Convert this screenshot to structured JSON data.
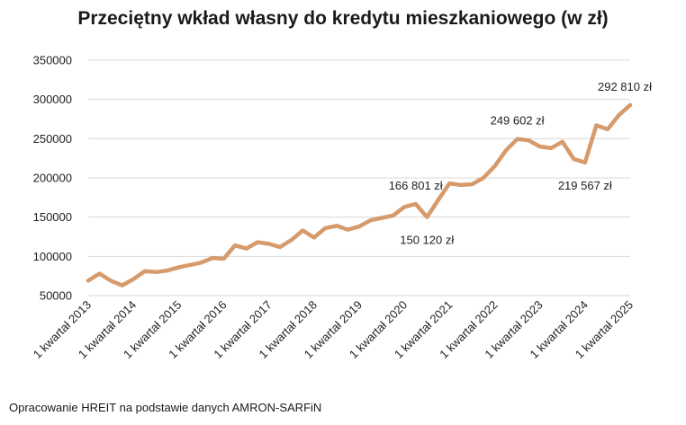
{
  "chart_data": {
    "type": "line",
    "title": "Przeciętny wkład własny do kredytu mieszkaniowego (w zł)",
    "xlabel": "",
    "ylabel": "",
    "ylim": [
      50000,
      350000
    ],
    "y_ticks": [
      "50000",
      "100000",
      "150000",
      "200000",
      "250000",
      "300000",
      "350000"
    ],
    "grid": true,
    "legend": "none",
    "line_color": "#D69A6B",
    "gridline_color": "#D9D9D9",
    "categories": [
      "1 kwartał 2013",
      "2 kwartał 2013",
      "3 kwartał 2013",
      "4 kwartał 2013",
      "1 kwartał 2014",
      "2 kwartał 2014",
      "3 kwartał 2014",
      "4 kwartał 2014",
      "1 kwartał 2015",
      "2 kwartał 2015",
      "3 kwartał 2015",
      "4 kwartał 2015",
      "1 kwartał 2016",
      "2 kwartał 2016",
      "3 kwartał 2016",
      "4 kwartał 2016",
      "1 kwartał 2017",
      "2 kwartał 2017",
      "3 kwartał 2017",
      "4 kwartał 2017",
      "1 kwartał 2018",
      "2 kwartał 2018",
      "3 kwartał 2018",
      "4 kwartał 2018",
      "1 kwartał 2019",
      "2 kwartał 2019",
      "3 kwartał 2019",
      "4 kwartał 2019",
      "1 kwartał 2020",
      "2 kwartał 2020",
      "3 kwartał 2020",
      "4 kwartał 2020",
      "1 kwartał 2021",
      "2 kwartał 2021",
      "3 kwartał 2021",
      "4 kwartał 2021",
      "1 kwartał 2022",
      "2 kwartał 2022",
      "3 kwartał 2022",
      "4 kwartał 2022",
      "1 kwartał 2023",
      "2 kwartał 2023",
      "3 kwartał 2023",
      "4 kwartał 2023",
      "1 kwartał 2024",
      "2 kwartał 2024",
      "3 kwartał 2024",
      "4 kwartał 2024",
      "1 kwartał 2025"
    ],
    "x_tick_labels": [
      "1 kwartał 2013",
      "1 kwartał 2014",
      "1 kwartał 2015",
      "1 kwartał 2016",
      "1 kwartał 2017",
      "1 kwartał 2018",
      "1 kwartał 2019",
      "1 kwartał 2020",
      "1 kwartał 2021",
      "1 kwartał 2022",
      "1 kwartał 2023",
      "1 kwartał 2024",
      "1 kwartał 2025"
    ],
    "values": [
      69000,
      78000,
      69000,
      63000,
      71000,
      81000,
      80000,
      82000,
      86000,
      89000,
      92000,
      98000,
      97000,
      114000,
      110000,
      118000,
      116000,
      112000,
      121000,
      133000,
      124000,
      136000,
      139000,
      134000,
      138000,
      146000,
      149000,
      152000,
      163000,
      166801,
      150120,
      172000,
      193000,
      191000,
      192000,
      200000,
      215000,
      235000,
      249602,
      248000,
      240000,
      238000,
      246000,
      224000,
      219567,
      267000,
      262000,
      280000,
      292810
    ],
    "annotations": [
      {
        "index": 29,
        "text": "166 801 zł",
        "position": "above"
      },
      {
        "index": 30,
        "text": "150 120 zł",
        "position": "below"
      },
      {
        "index": 38,
        "text": "249 602 zł",
        "position": "above"
      },
      {
        "index": 44,
        "text": "219 567 zł",
        "position": "below"
      },
      {
        "index": 48,
        "text": "292 810 zł",
        "position": "above"
      }
    ]
  },
  "footer": {
    "source": "Opracowanie HREIT na podstawie danych AMRON-SARFiN"
  }
}
